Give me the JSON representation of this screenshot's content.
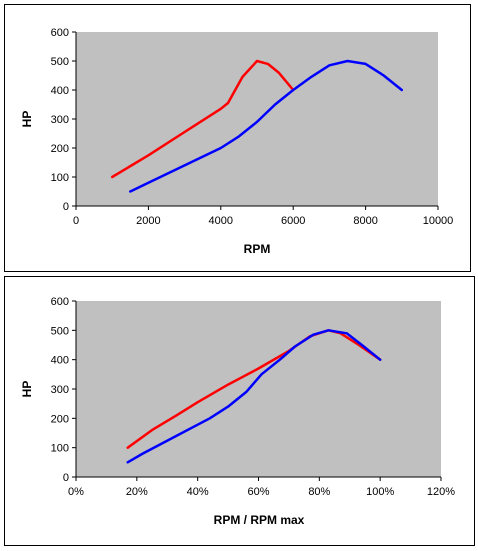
{
  "chart_data": [
    {
      "type": "line",
      "xlabel": "RPM",
      "ylabel": "HP",
      "xlim": [
        0,
        10000
      ],
      "ylim": [
        0,
        600
      ],
      "xticks": [
        "0",
        "2000",
        "4000",
        "6000",
        "8000",
        "10000"
      ],
      "yticks": [
        "0",
        "100",
        "200",
        "300",
        "400",
        "500",
        "600"
      ],
      "plot_bg": "#c0c0c0",
      "grid": false,
      "legend": "none",
      "series": [
        {
          "color": "#ff0000",
          "x": [
            1000,
            2000,
            3000,
            4000,
            4200,
            4600,
            5000,
            5300,
            5600,
            6000
          ],
          "y": [
            100,
            175,
            255,
            335,
            355,
            445,
            500,
            490,
            460,
            400
          ]
        },
        {
          "color": "#0000ff",
          "x": [
            1500,
            2000,
            3000,
            4000,
            4500,
            5000,
            5500,
            6000,
            6500,
            7000,
            7500,
            8000,
            8500,
            9000
          ],
          "y": [
            50,
            80,
            140,
            200,
            240,
            290,
            350,
            400,
            445,
            485,
            500,
            490,
            450,
            400
          ]
        }
      ]
    },
    {
      "type": "line",
      "xlabel": "RPM / RPM max",
      "ylabel": "HP",
      "xlim": [
        0,
        120
      ],
      "ylim": [
        0,
        600
      ],
      "xticks": [
        "0%",
        "20%",
        "40%",
        "60%",
        "80%",
        "100%",
        "120%"
      ],
      "yticks": [
        "0",
        "100",
        "200",
        "300",
        "400",
        "500",
        "600"
      ],
      "plot_bg": "#c0c0c0",
      "grid": false,
      "legend": "none",
      "series": [
        {
          "color": "#ff0000",
          "x": [
            17,
            25,
            33,
            40,
            50,
            60,
            70,
            77,
            83,
            87,
            93,
            100
          ],
          "y": [
            100,
            160,
            210,
            255,
            315,
            370,
            430,
            480,
            500,
            490,
            450,
            400
          ]
        },
        {
          "color": "#0000ff",
          "x": [
            17,
            22,
            33,
            44,
            50,
            56,
            61,
            67,
            72,
            78,
            83,
            89,
            94,
            100
          ],
          "y": [
            50,
            80,
            140,
            200,
            240,
            290,
            350,
            400,
            445,
            485,
            500,
            490,
            450,
            400
          ]
        }
      ]
    }
  ]
}
